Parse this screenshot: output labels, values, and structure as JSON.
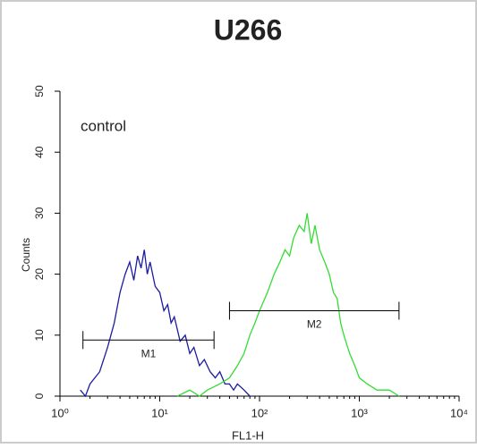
{
  "chart_data": {
    "type": "line",
    "title": "U266",
    "annotation": "control",
    "x_label": "FL1-H",
    "y_label": "Counts",
    "xlog": true,
    "xlim": [
      1,
      10000
    ],
    "ylim": [
      0,
      50
    ],
    "xticks": [
      {
        "value": 1,
        "label": "10⁰"
      },
      {
        "value": 10,
        "label": "10¹"
      },
      {
        "value": 100,
        "label": "10²"
      },
      {
        "value": 1000,
        "label": "10³"
      },
      {
        "value": 10000,
        "label": "10⁴"
      }
    ],
    "yticks": [
      0,
      10,
      20,
      30,
      40,
      50
    ],
    "series": [
      {
        "color": "#1c1ca0",
        "x": [
          1.6,
          1.8,
          2,
          2.5,
          3,
          3.5,
          4,
          4.5,
          5,
          5.5,
          6,
          6.5,
          7,
          7.5,
          8,
          9,
          10,
          11,
          12,
          13,
          14,
          16,
          18,
          20,
          22,
          25,
          28,
          32,
          36,
          40,
          45,
          50,
          55,
          60,
          70,
          80
        ],
        "values": [
          1,
          0,
          2,
          4,
          8,
          12,
          17,
          20,
          22,
          19,
          23,
          21,
          24,
          20,
          22,
          18,
          17,
          14,
          15,
          12,
          13,
          9,
          10,
          7,
          8,
          5,
          6,
          4,
          3,
          4,
          2,
          2,
          1,
          2,
          1,
          0
        ]
      },
      {
        "color": "#33dd33",
        "x": [
          15,
          20,
          25,
          30,
          40,
          50,
          60,
          70,
          80,
          90,
          100,
          120,
          140,
          160,
          180,
          200,
          220,
          250,
          280,
          300,
          330,
          360,
          400,
          450,
          500,
          550,
          600,
          650,
          700,
          800,
          900,
          1000,
          1200,
          1500,
          2000,
          2500
        ],
        "values": [
          0,
          1,
          0,
          1,
          2,
          3,
          5,
          7,
          10,
          12,
          14,
          17,
          20,
          22,
          24,
          23,
          26,
          28,
          27,
          30,
          25,
          28,
          24,
          22,
          20,
          17,
          16,
          12,
          10,
          7,
          5,
          3,
          2,
          1,
          1,
          0
        ]
      }
    ],
    "markers": [
      {
        "label": "M1",
        "range": [
          1.7,
          35
        ],
        "level": 9.2
      },
      {
        "label": "M2",
        "range": [
          50,
          2500
        ],
        "level": 14
      }
    ]
  }
}
